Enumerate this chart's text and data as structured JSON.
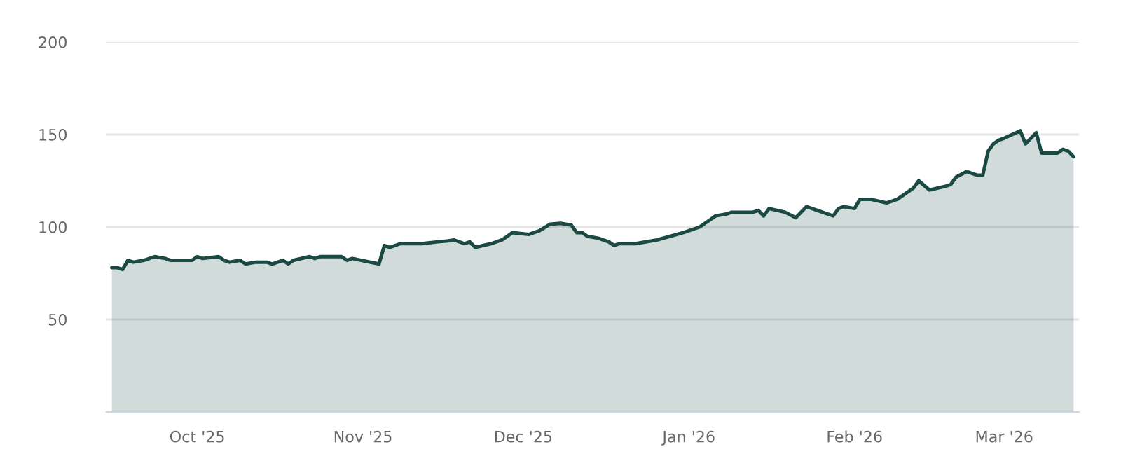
{
  "chart_data": {
    "type": "area",
    "x": [
      "2025-09-15",
      "2025-09-16",
      "2025-09-17",
      "2025-09-18",
      "2025-09-19",
      "2025-09-21",
      "2025-09-23",
      "2025-09-25",
      "2025-09-26",
      "2025-09-28",
      "2025-09-30",
      "2025-10-01",
      "2025-10-02",
      "2025-10-05",
      "2025-10-06",
      "2025-10-07",
      "2025-10-09",
      "2025-10-10",
      "2025-10-12",
      "2025-10-14",
      "2025-10-15",
      "2025-10-17",
      "2025-10-18",
      "2025-10-19",
      "2025-10-22",
      "2025-10-23",
      "2025-10-24",
      "2025-10-28",
      "2025-10-29",
      "2025-10-30",
      "2025-11-04",
      "2025-11-05",
      "2025-11-06",
      "2025-11-08",
      "2025-11-12",
      "2025-11-15",
      "2025-11-17",
      "2025-11-18",
      "2025-11-20",
      "2025-11-21",
      "2025-11-22",
      "2025-11-25",
      "2025-11-27",
      "2025-11-28",
      "2025-11-29",
      "2025-12-02",
      "2025-12-04",
      "2025-12-06",
      "2025-12-08",
      "2025-12-10",
      "2025-12-11",
      "2025-12-12",
      "2025-12-13",
      "2025-12-15",
      "2025-12-17",
      "2025-12-18",
      "2025-12-19",
      "2025-12-22",
      "2025-12-26",
      "2025-12-31",
      "2026-01-03",
      "2026-01-05",
      "2026-01-06",
      "2026-01-08",
      "2026-01-09",
      "2026-01-13",
      "2026-01-14",
      "2026-01-15",
      "2026-01-16",
      "2026-01-19",
      "2026-01-21",
      "2026-01-23",
      "2026-01-26",
      "2026-01-28",
      "2026-01-29",
      "2026-01-30",
      "2026-02-01",
      "2026-02-02",
      "2026-02-04",
      "2026-02-07",
      "2026-02-09",
      "2026-02-10",
      "2026-02-12",
      "2026-02-13",
      "2026-02-15",
      "2026-02-18",
      "2026-02-19",
      "2026-02-20",
      "2026-02-22",
      "2026-02-24",
      "2026-02-25",
      "2026-02-26",
      "2026-02-27",
      "2026-02-28",
      "2026-03-01",
      "2026-03-04",
      "2026-03-05",
      "2026-03-07",
      "2026-03-08",
      "2026-03-11",
      "2026-03-12",
      "2026-03-13",
      "2026-03-14"
    ],
    "series": [
      {
        "color": "#1b4a45",
        "values": [
          78,
          78,
          77,
          82,
          81,
          82,
          84,
          83,
          82,
          82,
          82,
          84,
          83,
          84,
          82,
          81,
          82,
          80,
          81,
          81,
          80,
          82,
          80,
          82,
          84,
          83,
          84,
          84,
          82,
          83,
          80,
          90,
          89,
          91,
          91,
          92,
          92.5,
          93,
          91,
          92,
          89,
          91,
          93,
          95,
          97,
          96,
          98,
          101.5,
          102,
          101,
          97,
          97,
          95,
          94,
          92,
          90,
          91,
          91,
          93,
          97,
          100,
          104,
          106,
          107,
          108,
          108,
          109,
          106,
          110,
          108,
          105,
          111,
          108,
          106,
          110,
          111,
          110,
          115,
          115,
          113,
          115,
          117,
          121,
          125,
          120,
          122,
          123,
          127,
          130,
          128,
          128,
          141,
          145,
          147,
          148,
          152,
          145,
          151,
          140,
          140,
          142,
          141,
          138
        ]
      }
    ],
    "xlim": [
      "2025-09-14",
      "2026-03-15"
    ],
    "xticks": [
      {
        "value": "2025-10-01",
        "label": "Oct '25"
      },
      {
        "value": "2025-11-01",
        "label": "Nov '25"
      },
      {
        "value": "2025-12-01",
        "label": "Dec '25"
      },
      {
        "value": "2026-01-01",
        "label": "Jan '26"
      },
      {
        "value": "2026-02-01",
        "label": "Feb '26"
      },
      {
        "value": "2026-03-01",
        "label": "Mar '26"
      }
    ],
    "ylim": [
      0,
      200
    ],
    "yticks": [
      50,
      100,
      150,
      200
    ],
    "grid": "y"
  }
}
